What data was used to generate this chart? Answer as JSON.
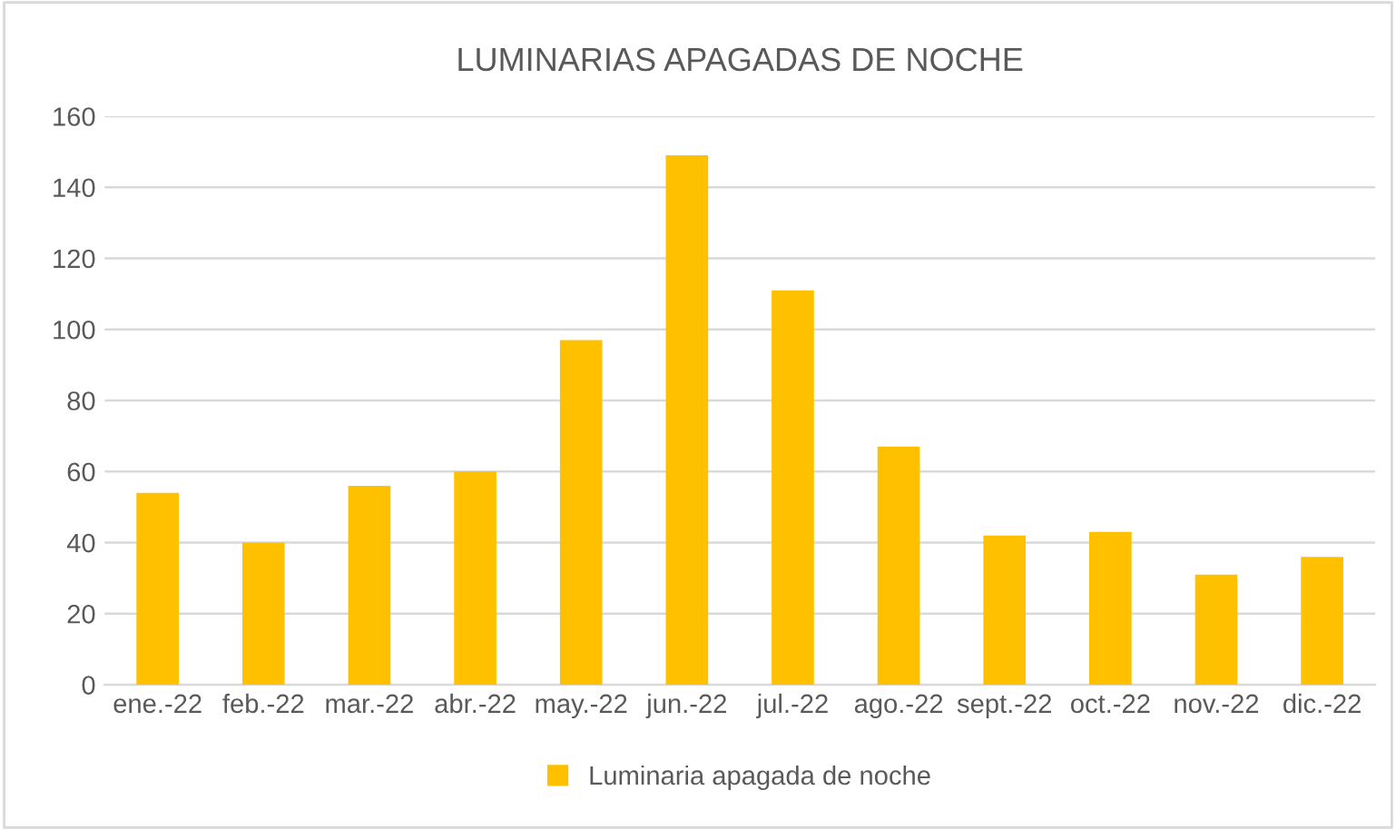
{
  "chart_data": {
    "type": "bar",
    "title": "LUMINARIAS APAGADAS DE NOCHE",
    "categories": [
      "ene.-22",
      "feb.-22",
      "mar.-22",
      "abr.-22",
      "may.-22",
      "jun.-22",
      "jul.-22",
      "ago.-22",
      "sept.-22",
      "oct.-22",
      "nov.-22",
      "dic.-22"
    ],
    "series": [
      {
        "name": "Luminaria apagada de noche",
        "color": "#ffc000",
        "values": [
          54,
          40,
          56,
          60,
          97,
          149,
          111,
          67,
          42,
          43,
          31,
          36
        ]
      }
    ],
    "ylim": [
      0,
      160
    ],
    "yticks": [
      0,
      20,
      40,
      60,
      80,
      100,
      120,
      140,
      160
    ],
    "grid": "y",
    "legend": "bottom"
  }
}
